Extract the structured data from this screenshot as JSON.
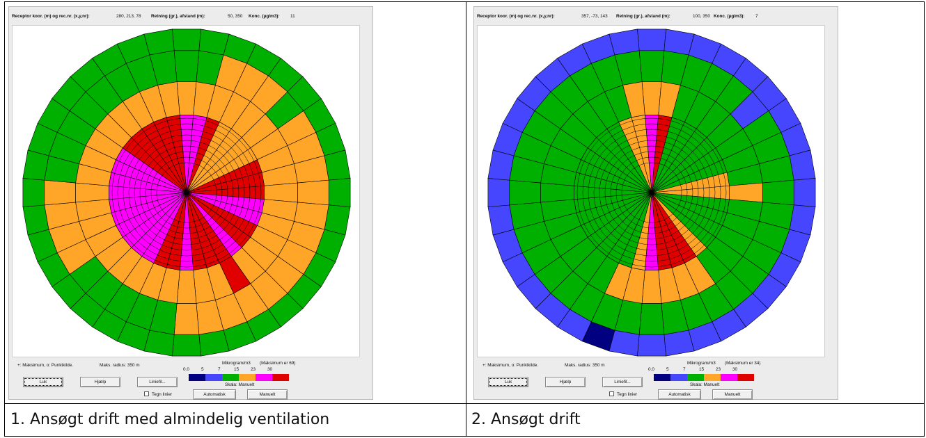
{
  "panels": [
    {
      "header": {
        "receptor_label": "Receptor koor. (m) og rec.nr. (x,y,nr):",
        "receptor_value": "280, 213, 78",
        "direction_label": "Retning (gr.), afstand (m):",
        "direction_value": "50, 350",
        "conc_label": "Konc. (µg/m3):",
        "conc_value": "11"
      },
      "legend_text": "+: Maksimum,  o: Punktkilde.",
      "max_radius": "Maks. radius:  350 m",
      "unit_text": "Mikrogram/m3",
      "max_text": "(Maksimum er  69)",
      "scale_label": "Skala:  Manuelt",
      "buttons": {
        "close": "Luk",
        "help": "Hjælp",
        "linefile": "Liniefil...",
        "auto": "Automatisk",
        "manual": "Manuelt"
      },
      "checkbox_label": "Tegn linier",
      "caption": "1. Ansøgt drift med almindelig ventilation",
      "rings_outer": [
        "G",
        "G",
        "G",
        "G",
        "G",
        "G",
        "G",
        "G",
        "G",
        "G",
        "G",
        "G",
        "G",
        "G",
        "G",
        "G",
        "G",
        "G",
        "G",
        "G",
        "G",
        "G",
        "G",
        "G",
        "G",
        "G",
        "G",
        "G",
        "G",
        "G",
        "G",
        "G",
        "G",
        "G",
        "G",
        "G"
      ],
      "rings_mid": [
        "G",
        "G",
        "O",
        "O",
        "O",
        "G",
        "O",
        "O",
        "O",
        "O",
        "O",
        "O",
        "O",
        "O",
        "O",
        "O",
        "O",
        "O",
        "O",
        "G",
        "G",
        "G",
        "G",
        "G",
        "O",
        "O",
        "O",
        "O",
        "G",
        "G",
        "G",
        "G",
        "G",
        "G",
        "G",
        "G"
      ],
      "rings_inner": [
        "O",
        "O",
        "O",
        "O",
        "O",
        "O",
        "O",
        "O",
        "O",
        "O",
        "O",
        "O",
        "O",
        "O",
        "O",
        "R",
        "O",
        "O",
        "O",
        "O",
        "O",
        "O",
        "O",
        "O",
        "O",
        "O",
        "O",
        "O",
        "O",
        "O",
        "O",
        "O",
        "O",
        "O",
        "O",
        "O"
      ],
      "rings_core": [
        "P",
        "P",
        "R",
        "O",
        "O",
        "O",
        "O",
        "R",
        "R",
        "R",
        "P",
        "P",
        "R",
        "R",
        "P",
        "R",
        "R",
        "R",
        "P",
        "R",
        "R",
        "P",
        "P",
        "P",
        "P",
        "P",
        "P",
        "P",
        "P",
        "P",
        "P",
        "R",
        "R",
        "R",
        "R",
        "R"
      ]
    },
    {
      "header": {
        "receptor_label": "Receptor koor. (m) og rec.nr. (x,y,nr):",
        "receptor_value": "357, -73, 143",
        "direction_label": "Retning (gr.), afstand (m):",
        "direction_value": "100, 350",
        "conc_label": "Konc. (µg/m3):",
        "conc_value": "7"
      },
      "legend_text": "+: Maksimum,  o: Punktkilde.",
      "max_radius": "Maks. radius:  350 m",
      "unit_text": "Mikrogram/m3",
      "max_text": "(Maksimum er  34)",
      "scale_label": "Skala:  Manuelt",
      "buttons": {
        "close": "Luk",
        "help": "Hjælp",
        "linefile": "Liniefil...",
        "auto": "Automatisk",
        "manual": "Manuelt"
      },
      "checkbox_label": "Tegn linier",
      "caption": "2. Ansøgt drift",
      "rings_outer": [
        "B",
        "B",
        "B",
        "B",
        "B",
        "B",
        "B",
        "B",
        "B",
        "B",
        "B",
        "B",
        "B",
        "B",
        "B",
        "B",
        "B",
        "B",
        "B",
        "B",
        "N",
        "B",
        "B",
        "B",
        "B",
        "B",
        "B",
        "B",
        "B",
        "B",
        "B",
        "B",
        "B",
        "B",
        "B",
        "B"
      ],
      "rings_mid": [
        "G",
        "G",
        "G",
        "G",
        "G",
        "B",
        "G",
        "G",
        "G",
        "G",
        "G",
        "G",
        "G",
        "G",
        "G",
        "G",
        "G",
        "G",
        "G",
        "G",
        "G",
        "G",
        "G",
        "G",
        "G",
        "G",
        "G",
        "G",
        "G",
        "G",
        "G",
        "G",
        "G",
        "G",
        "G",
        "G"
      ],
      "rings_inner": [
        "O",
        "O",
        "G",
        "G",
        "G",
        "G",
        "G",
        "G",
        "G",
        "O",
        "G",
        "G",
        "G",
        "G",
        "G",
        "O",
        "O",
        "O",
        "O",
        "O",
        "O",
        "G",
        "G",
        "G",
        "G",
        "G",
        "G",
        "G",
        "G",
        "G",
        "G",
        "G",
        "G",
        "G",
        "G",
        "O"
      ],
      "rings_core": [
        "P",
        "R",
        "G",
        "G",
        "G",
        "G",
        "G",
        "G",
        "O",
        "O",
        "G",
        "G",
        "G",
        "G",
        "O",
        "R",
        "R",
        "R",
        "P",
        "O",
        "G",
        "G",
        "G",
        "G",
        "G",
        "G",
        "G",
        "G",
        "G",
        "G",
        "G",
        "G",
        "G",
        "G",
        "O",
        "O"
      ]
    }
  ],
  "scale": {
    "ticks": [
      "0.0",
      "5",
      "7",
      "15",
      "23",
      "30"
    ],
    "colors": [
      "#000080",
      "#4646ff",
      "#00b000",
      "#ffa528",
      "#ff00ff",
      "#e00000"
    ]
  },
  "palette": {
    "N": "#000080",
    "B": "#4646ff",
    "G": "#00b000",
    "O": "#ffa528",
    "P": "#ff00ff",
    "R": "#e00000"
  }
}
